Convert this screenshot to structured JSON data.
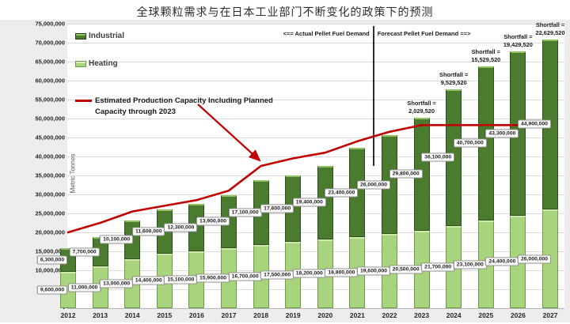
{
  "title": "全球颗粒需求与在日本工业部门不断变化的政策下的预测",
  "y_axis": {
    "label": "Metric Tonnes",
    "tick_labels": [
      "75,000,000",
      "70,000,000",
      "65,000,000",
      "60,000,000",
      "55,000,000",
      "50,000,000",
      "45,000,000",
      "40,000,000",
      "35,000,000",
      "30,000,000",
      "25,000,000",
      "20,000,000",
      "15,000,000",
      "10,000,000",
      "5,000,000",
      "-"
    ],
    "tick_values": [
      75000000,
      70000000,
      65000000,
      60000000,
      55000000,
      50000000,
      45000000,
      40000000,
      35000000,
      30000000,
      25000000,
      20000000,
      15000000,
      10000000,
      5000000,
      0
    ]
  },
  "legend": {
    "industrial_label": "Industrial",
    "heating_label": "Heating"
  },
  "capacity_note": {
    "line1": "Estimated Production Capacity Including Planned",
    "line2": "Capacity through 2023"
  },
  "divider": {
    "left_label": "<== Actual Pellet Fuel Demand",
    "right_label": "Forecast Pellet Fuel Demand ==>"
  },
  "colors": {
    "industrial": "#4b7b2f",
    "heating": "#a8d47e",
    "capacity_line": "#c00000",
    "gridline": "#dcdcdc"
  },
  "chart_data": {
    "type": "bar",
    "stacked": true,
    "title": "全球颗粒需求与在日本工业部门不断变化的政策下的预测",
    "xlabel": "",
    "ylabel": "Metric Tonnes",
    "ylim": [
      0,
      75000000
    ],
    "grid": true,
    "legend_position": "top-left",
    "categories": [
      "2012",
      "2013",
      "2014",
      "2015",
      "2016",
      "2017",
      "2018",
      "2019",
      "2020",
      "2021",
      "2022",
      "2023",
      "2024",
      "2025",
      "2026",
      "2027"
    ],
    "series": [
      {
        "name": "Heating",
        "color": "#a8d47e",
        "values": [
          9600000,
          11000000,
          13000000,
          14400000,
          15100000,
          15900000,
          16700000,
          17500000,
          18200000,
          18800000,
          19600000,
          20500000,
          21700000,
          23100000,
          24400000,
          26000000
        ]
      },
      {
        "name": "Industrial",
        "color": "#4b7b2f",
        "values": [
          6300000,
          7700000,
          10100000,
          11600000,
          12300000,
          13900000,
          17100000,
          17600000,
          19400000,
          23400000,
          26000000,
          29800000,
          36100000,
          40700000,
          43300000,
          44900000
        ]
      }
    ],
    "capacity_line": {
      "name": "Estimated Production Capacity Including Planned Capacity through 2023",
      "color": "#c00000",
      "values": [
        20000000,
        22500000,
        25500000,
        27000000,
        28500000,
        31000000,
        37500000,
        39500000,
        41000000,
        44000000,
        46500000,
        48270480,
        48270480,
        48270480,
        48270480,
        48270480
      ]
    },
    "shortfalls": [
      {
        "year": "2023",
        "label": "Shortfall =",
        "value": "2,029,520"
      },
      {
        "year": "2024",
        "label": "Shortfall =",
        "value": "9,529,520"
      },
      {
        "year": "2025",
        "label": "Shortfall =",
        "value": "15,529,520"
      },
      {
        "year": "2026",
        "label": "Shortfall =",
        "value": "19,429,520"
      },
      {
        "year": "2027",
        "label": "Shortfall =",
        "value": "22,629,520"
      }
    ],
    "divider_between": [
      "2021",
      "2022"
    ]
  }
}
